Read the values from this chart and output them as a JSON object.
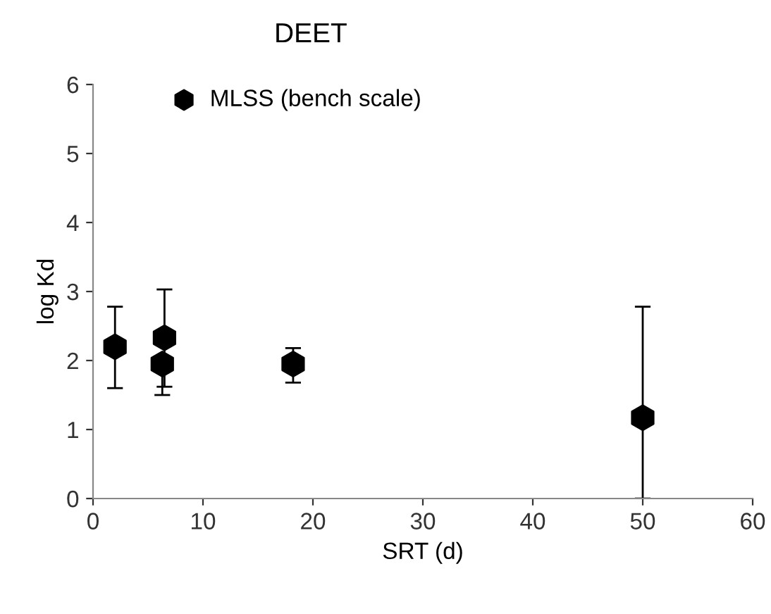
{
  "chart_data": {
    "type": "scatter",
    "title": "DEET",
    "xlabel": "SRT (d)",
    "ylabel": "log Kd",
    "x": [
      2,
      6.3,
      6.5,
      18.2,
      50
    ],
    "series": [
      {
        "name": "MLSS (bench scale)",
        "color": "#000000",
        "values": [
          2.2,
          1.95,
          2.33,
          1.95,
          1.17
        ],
        "errors": [
          [
            1.6,
            2.78
          ],
          [
            1.5,
            1.95
          ],
          [
            1.62,
            3.03
          ],
          [
            1.68,
            2.18
          ],
          [
            0,
            2.78
          ]
        ]
      }
    ],
    "xlim": [
      0,
      60
    ],
    "xticks": [
      0,
      10,
      20,
      30,
      40,
      50,
      60
    ],
    "ylim": [
      0,
      6
    ],
    "yticks": [
      0,
      1,
      2,
      3,
      4,
      5,
      6
    ],
    "legend": "top",
    "grid": false
  }
}
